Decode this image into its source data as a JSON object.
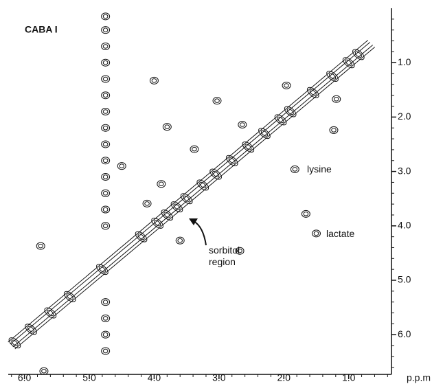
{
  "chart_data": {
    "type": "contour",
    "title": "CABA I",
    "x_unit_label": "p.p.m",
    "xlim": [
      6.25,
      0.34
    ],
    "ylim": [
      0,
      6.73
    ],
    "xticks": [
      {
        "value": 6,
        "label": "6.0"
      },
      {
        "value": 5,
        "label": "5.0"
      },
      {
        "value": 4,
        "label": "4.0"
      },
      {
        "value": 3,
        "label": "3.0"
      },
      {
        "value": 2,
        "label": "2.0"
      },
      {
        "value": 1,
        "label": "1.0"
      }
    ],
    "yticks": [
      {
        "value": 1,
        "label": "1.0"
      },
      {
        "value": 2,
        "label": "2.0"
      },
      {
        "value": 3,
        "label": "3.0"
      },
      {
        "value": 4,
        "label": "4.0"
      },
      {
        "value": 5,
        "label": "5.0"
      },
      {
        "value": 6,
        "label": "6.0"
      }
    ],
    "xminorticks": [
      6.2,
      5.8,
      5.6,
      5.4,
      5.2,
      4.8,
      4.6,
      4.4,
      4.2,
      3.8,
      3.6,
      3.4,
      3.2,
      2.8,
      2.6,
      2.4,
      2.2,
      1.8,
      1.6,
      1.4,
      1.2,
      0.8,
      0.6,
      0.4
    ],
    "yminorticks": [
      0.2,
      0.4,
      0.6,
      0.8,
      1.2,
      1.4,
      1.6,
      1.8,
      2.2,
      2.4,
      2.6,
      2.8,
      3.2,
      3.4,
      3.6,
      3.8,
      4.2,
      4.4,
      4.6,
      4.8,
      5.2,
      5.4,
      5.6,
      5.8,
      6.2,
      6.4,
      6.6
    ],
    "diagonal": {
      "x": [
        6.2,
        0.65
      ],
      "y": [
        6.2,
        0.65
      ]
    },
    "peaks": {
      "x": [
        0.85,
        1.0,
        1.25,
        1.55,
        1.9,
        2.05,
        2.3,
        2.55,
        2.8,
        3.05,
        3.25,
        3.5,
        3.65,
        3.8,
        3.95,
        4.2,
        4.8,
        5.3,
        5.6,
        5.9,
        6.15,
        4.75,
        4.75,
        4.75,
        4.75,
        4.75,
        4.75,
        4.75,
        4.75,
        4.75,
        4.75,
        4.75,
        4.75,
        4.75,
        4.75,
        4.75,
        4.75,
        4.75,
        4.75,
        1.83,
        1.5,
        3.03,
        4.0,
        3.8,
        1.19,
        1.96,
        2.68,
        3.89,
        4.11,
        1.66,
        5.75,
        3.6,
        5.7,
        4.5,
        1.23,
        2.64,
        3.38
      ],
      "y": [
        0.85,
        1.0,
        1.25,
        1.55,
        1.9,
        2.05,
        2.3,
        2.55,
        2.8,
        3.05,
        3.25,
        3.5,
        3.65,
        3.8,
        3.95,
        4.2,
        4.8,
        5.3,
        5.6,
        5.9,
        6.15,
        0.15,
        0.4,
        0.7,
        1.0,
        1.3,
        1.6,
        1.9,
        2.2,
        2.5,
        2.8,
        3.1,
        3.4,
        3.7,
        4.0,
        5.4,
        5.7,
        6.0,
        6.3,
        2.96,
        4.14,
        1.7,
        1.33,
        2.18,
        1.67,
        1.42,
        4.46,
        3.23,
        3.59,
        3.78,
        4.37,
        4.27,
        6.67,
        2.9,
        2.24,
        2.14,
        2.59
      ]
    },
    "annotations": [
      "lysine",
      "lactate",
      "sorbitol region"
    ]
  }
}
